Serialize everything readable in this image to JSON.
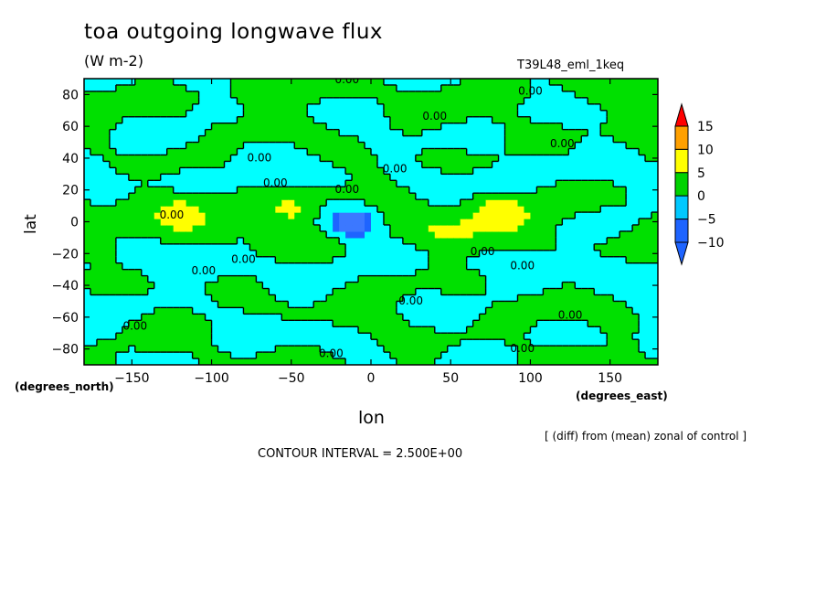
{
  "chart_data": {
    "type": "heatmap",
    "title": "toa outgoing longwave flux",
    "units": "(W m-2)",
    "run_name": "T39L48_eml_1keq",
    "xlabel": "lon",
    "ylabel": "lat",
    "x_units": "(degrees_east)",
    "y_units": "(degrees_north)",
    "xlim": [
      -180,
      180
    ],
    "ylim": [
      -90,
      90
    ],
    "x_ticks": [
      -150,
      -100,
      -50,
      0,
      50,
      100,
      150
    ],
    "y_ticks": [
      80,
      60,
      40,
      20,
      0,
      -20,
      -40,
      -60,
      -80
    ],
    "contour_label": "0.00",
    "contour_interval": "CONTOUR INTERVAL = 2.500E+00",
    "note": "[ (diff) from (mean) zonal of control ]",
    "colorbar": {
      "levels": [
        -10,
        -5,
        0,
        5,
        10,
        15
      ],
      "labels": [
        "15",
        "10",
        "5",
        "0",
        "-5",
        "-10"
      ],
      "colors": [
        "#1e64ff",
        "#00c8ff",
        "#00ff00",
        "#00d200",
        "#ffff00",
        "#ffa000",
        "#ff0000"
      ]
    },
    "features": [
      {
        "lon": -10,
        "lat": 0,
        "value": -12.5
      },
      {
        "lon": 80,
        "lat": 8,
        "value": 7.5
      },
      {
        "lon": -48,
        "lat": 7,
        "value": 5
      },
      {
        "lon": -118,
        "lat": 9,
        "value": 5
      },
      {
        "lon": 50,
        "lat": -8,
        "value": 5
      },
      {
        "lon": 150,
        "lat": 0,
        "value": -5
      },
      {
        "lon": 10,
        "lat": 25,
        "value": 2.5
      },
      {
        "lon": 0,
        "lat": -40,
        "value": 2.5
      }
    ]
  },
  "colors": {
    "field_negative": "#00ffff",
    "field_positive": "#00e000",
    "field_strong_negative": "#3c78ff",
    "field_strong_positive": "#ffff00"
  }
}
